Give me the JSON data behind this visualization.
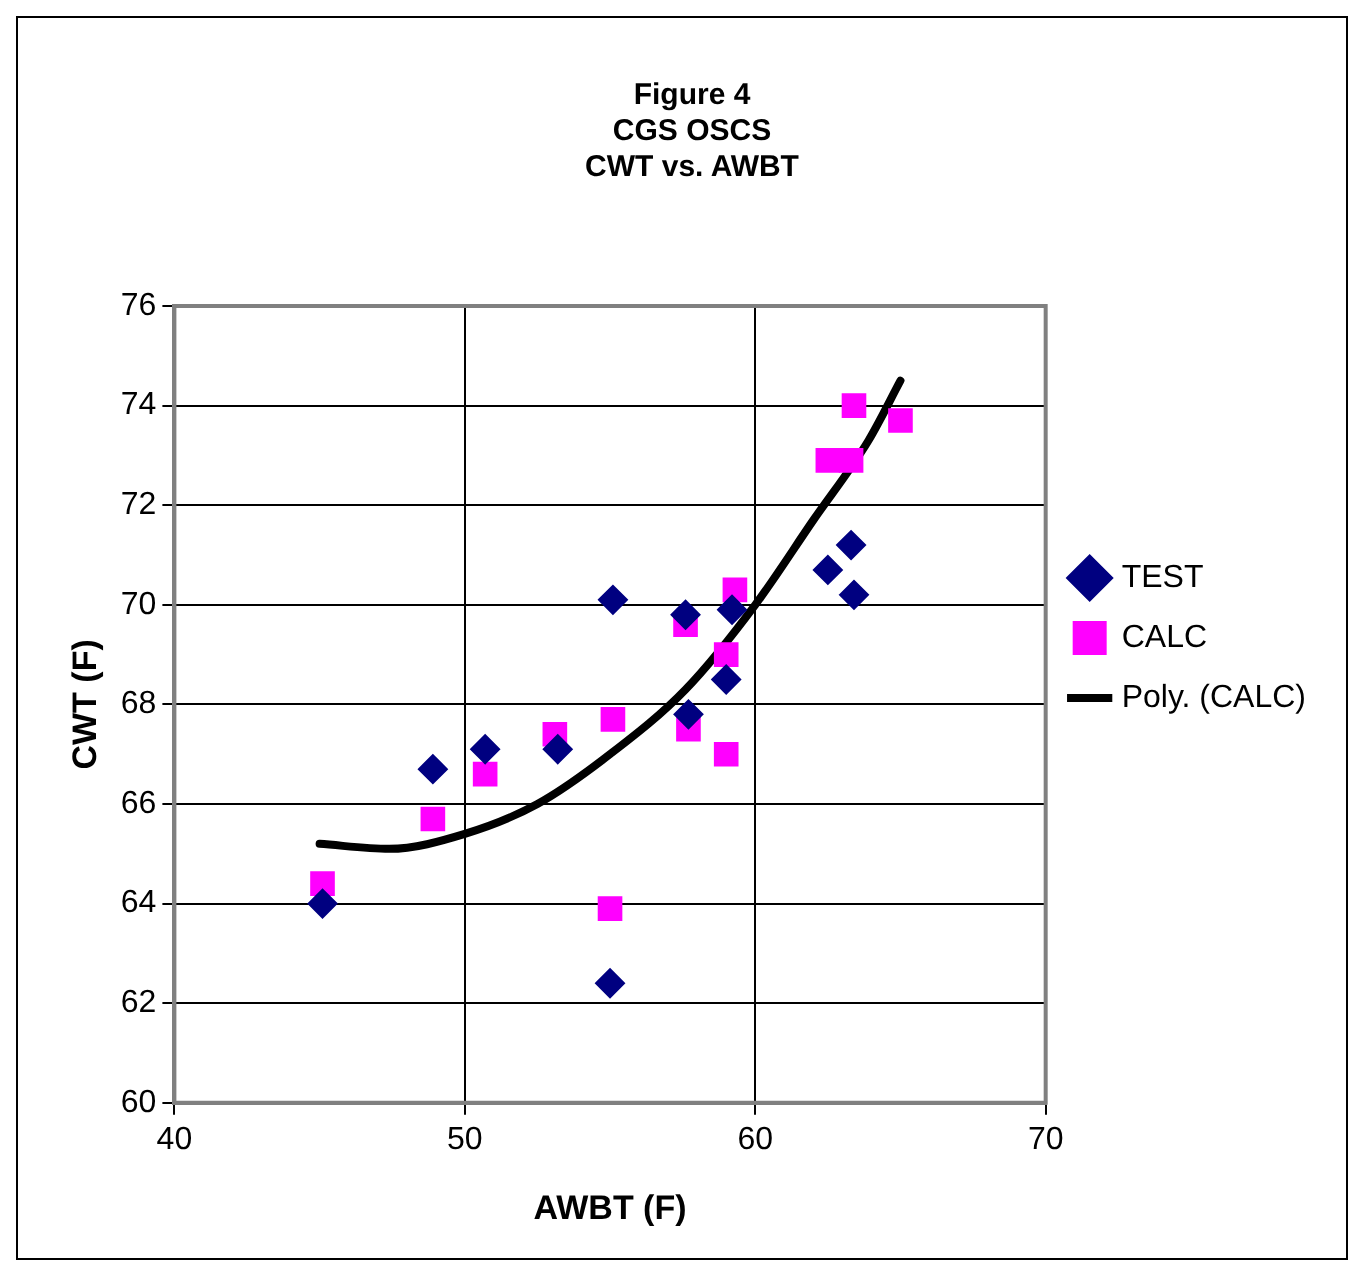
{
  "chart_data": {
    "type": "scatter",
    "title": "Figure 4\nCGS OSCS\nCWT vs. AWBT",
    "xlabel": "AWBT (F)",
    "ylabel": "CWT (F)",
    "xlim": [
      40,
      70
    ],
    "xticks": [
      40,
      50,
      60,
      70
    ],
    "ylim": [
      60,
      76
    ],
    "yticks": [
      60,
      62,
      64,
      66,
      68,
      70,
      72,
      74,
      76
    ],
    "grid": true,
    "legend": "right",
    "series": [
      {
        "name": "TEST",
        "marker": "diamond",
        "color": "#000080",
        "x": [
          45.1,
          48.9,
          50.7,
          53.2,
          55.1,
          55.0,
          57.6,
          57.7,
          59.0,
          59.2,
          62.5,
          63.3,
          63.4
        ],
        "values": [
          64.0,
          66.7,
          67.1,
          67.1,
          70.1,
          62.4,
          69.8,
          67.8,
          68.5,
          69.9,
          70.7,
          71.2,
          70.2
        ]
      },
      {
        "name": "CALC",
        "marker": "square",
        "color": "#ff00ff",
        "x": [
          45.1,
          48.9,
          50.7,
          53.1,
          55.1,
          55.0,
          57.6,
          57.7,
          59.0,
          59.3,
          59.0,
          62.5,
          63.4,
          63.3,
          65.0
        ],
        "values": [
          64.4,
          65.7,
          66.6,
          67.4,
          67.7,
          63.9,
          69.6,
          67.5,
          69.0,
          70.3,
          67.0,
          72.9,
          74.0,
          72.9,
          73.7
        ]
      },
      {
        "name": "Poly. (CALC)",
        "type": "line",
        "marker": "none",
        "line_style": "solid",
        "color": "#000000",
        "x": [
          45.0,
          47.4,
          50.0,
          52.5,
          55.0,
          57.6,
          60.0,
          62.0,
          63.9,
          65.0
        ],
        "values": [
          65.2,
          65.1,
          65.4,
          66.0,
          67.0,
          68.3,
          70.0,
          71.7,
          73.3,
          74.5
        ]
      }
    ]
  }
}
